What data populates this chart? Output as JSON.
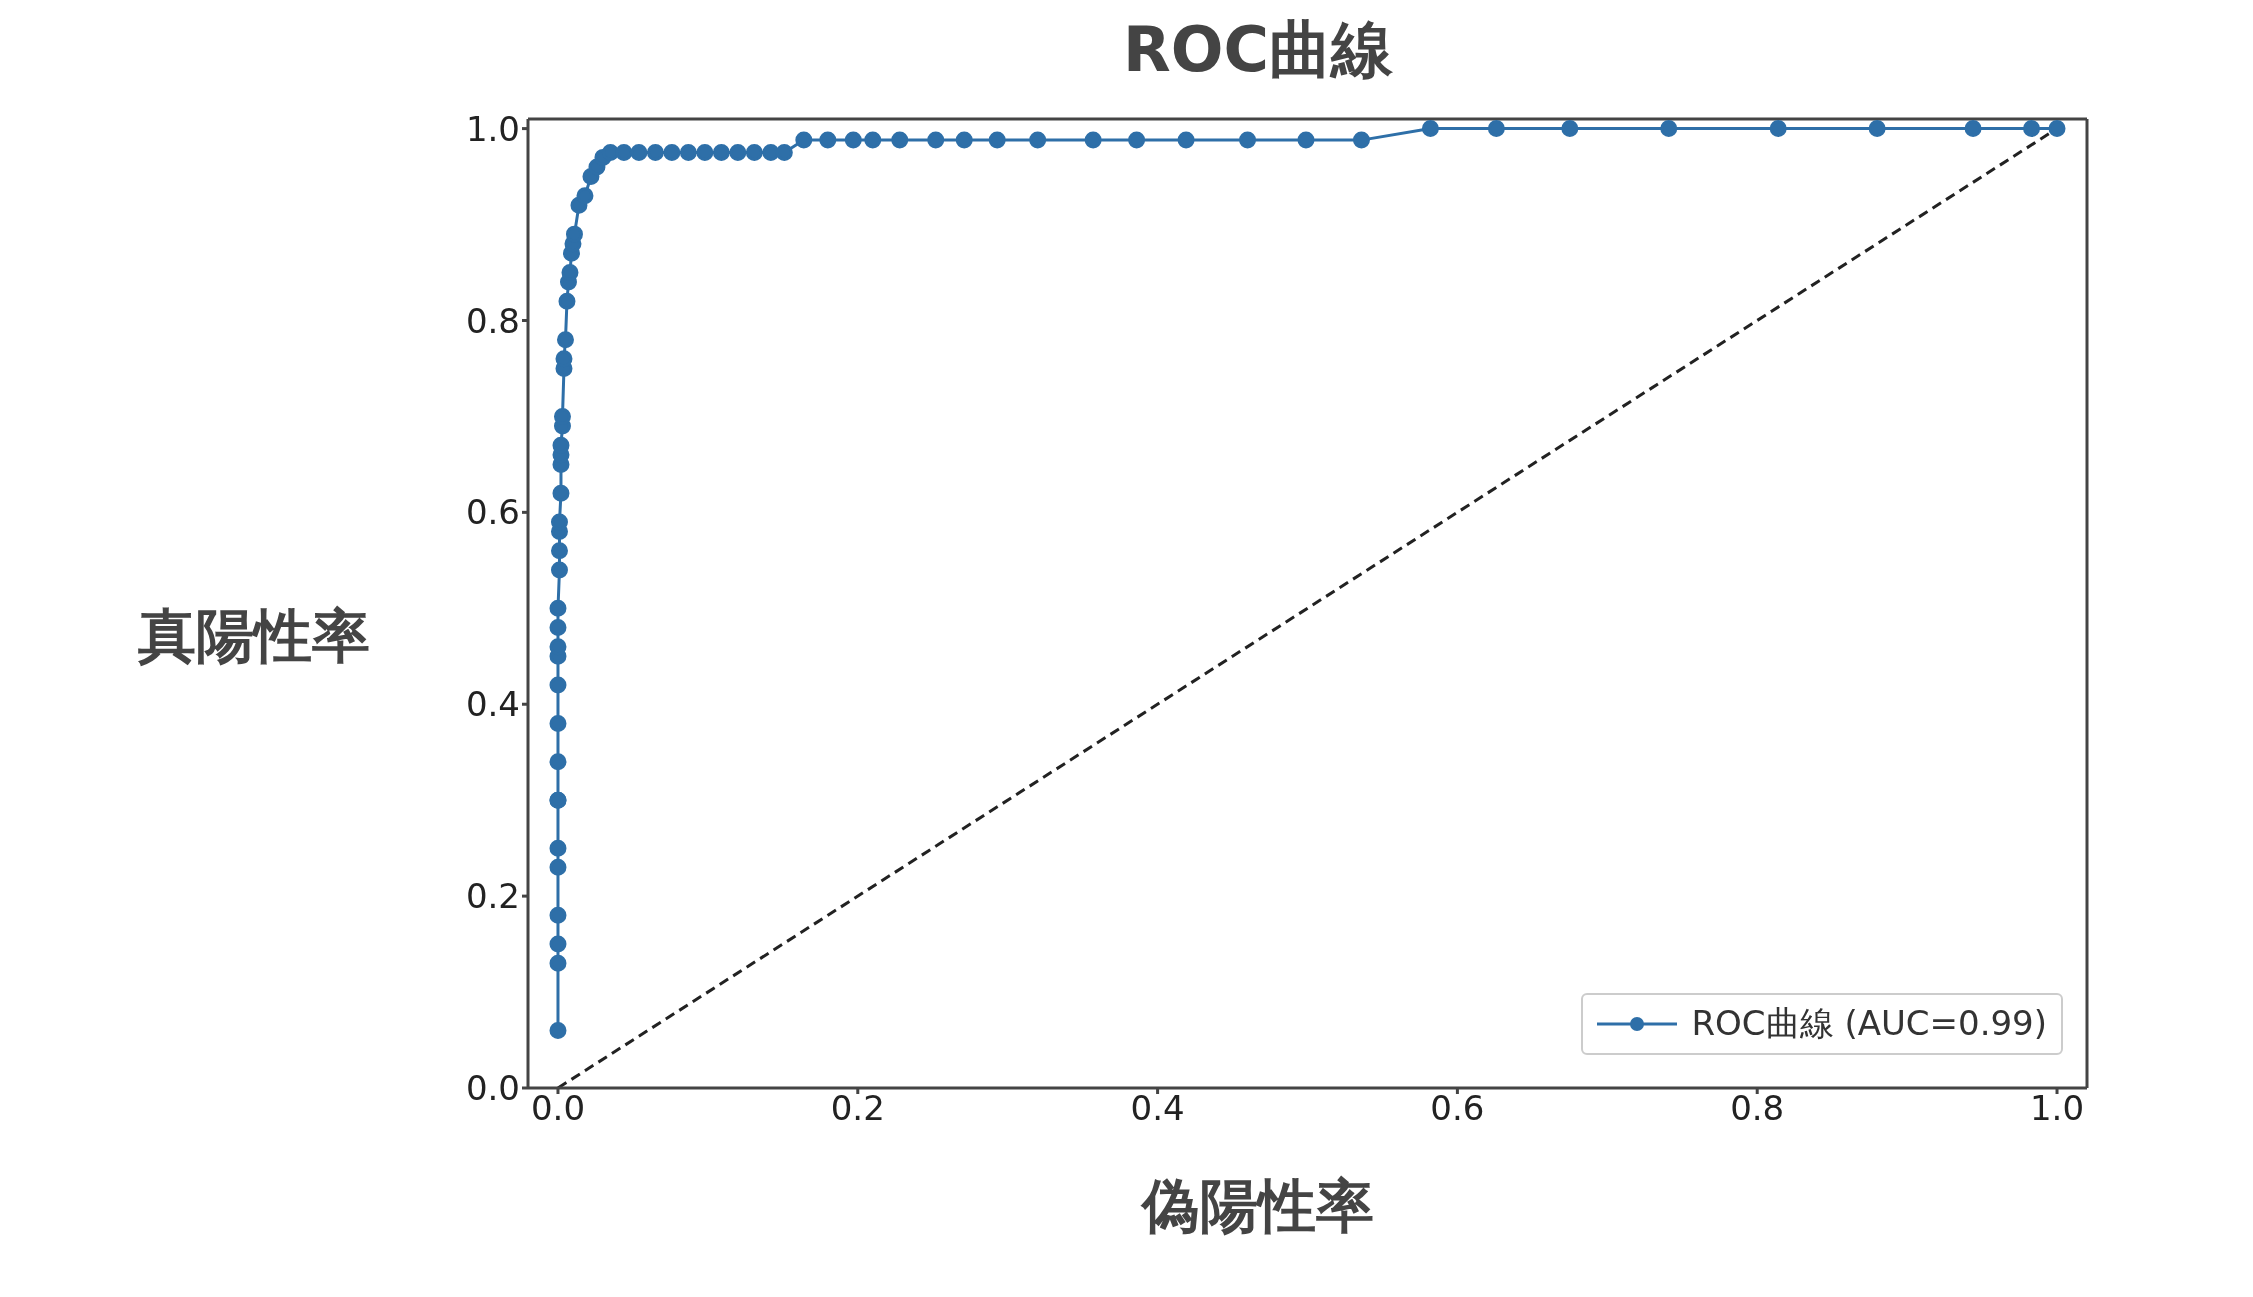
{
  "chart_data": {
    "type": "line",
    "title": "ROC曲線",
    "xlabel": "偽陽性率",
    "ylabel": "真陽性率",
    "xlim": [
      -0.02,
      1.02
    ],
    "ylim": [
      0,
      1.01
    ],
    "xticks": [
      {
        "value": 0,
        "label": "0.0"
      },
      {
        "value": 0.2,
        "label": "0.2"
      },
      {
        "value": 0.4,
        "label": "0.4"
      },
      {
        "value": 0.6,
        "label": "0.6"
      },
      {
        "value": 0.8,
        "label": "0.8"
      },
      {
        "value": 1,
        "label": "1.0"
      }
    ],
    "yticks": [
      {
        "value": 0,
        "label": "0.0"
      },
      {
        "value": 0.2,
        "label": "0.2"
      },
      {
        "value": 0.4,
        "label": "0.4"
      },
      {
        "value": 0.6,
        "label": "0.6"
      },
      {
        "value": 0.8,
        "label": "0.8"
      },
      {
        "value": 1,
        "label": "1.0"
      }
    ],
    "legend": "bottom right",
    "series": [
      {
        "name": "ROC曲線 (AUC=0.99)",
        "color": "#2e6fa8",
        "marker": "circle",
        "line_style": "solid",
        "x": [
          0,
          0,
          0,
          0,
          0,
          0,
          0,
          0,
          0,
          0,
          0,
          0,
          0,
          0,
          0,
          0.001,
          0.001,
          0.001,
          0.001,
          0.002,
          0.002,
          0.002,
          0.002,
          0.003,
          0.003,
          0.004,
          0.004,
          0.005,
          0.006,
          0.007,
          0.008,
          0.009,
          0.01,
          0.011,
          0.014,
          0.018,
          0.022,
          0.026,
          0.03,
          0.035,
          0.044,
          0.054,
          0.065,
          0.076,
          0.087,
          0.098,
          0.109,
          0.12,
          0.131,
          0.142,
          0.151,
          0.164,
          0.18,
          0.197,
          0.21,
          0.228,
          0.252,
          0.271,
          0.293,
          0.32,
          0.357,
          0.386,
          0.419,
          0.46,
          0.499,
          0.536,
          0.582,
          0.626,
          0.675,
          0.741,
          0.814,
          0.88,
          0.944,
          0.983,
          1
        ],
        "values": [
          0.06,
          0.13,
          0.15,
          0.18,
          0.23,
          0.25,
          0.3,
          0.3,
          0.34,
          0.38,
          0.42,
          0.45,
          0.46,
          0.48,
          0.5,
          0.54,
          0.56,
          0.58,
          0.59,
          0.62,
          0.65,
          0.66,
          0.67,
          0.69,
          0.7,
          0.75,
          0.76,
          0.78,
          0.82,
          0.84,
          0.85,
          0.87,
          0.88,
          0.89,
          0.92,
          0.93,
          0.95,
          0.96,
          0.97,
          0.975,
          0.975,
          0.975,
          0.975,
          0.975,
          0.975,
          0.975,
          0.975,
          0.975,
          0.975,
          0.975,
          0.975,
          0.988,
          0.988,
          0.988,
          0.988,
          0.988,
          0.988,
          0.988,
          0.988,
          0.988,
          0.988,
          0.988,
          0.988,
          0.988,
          0.988,
          0.988,
          1,
          1,
          1,
          1,
          1,
          1,
          1,
          1,
          1
        ]
      },
      {
        "color": "#222222",
        "marker": "none",
        "line_style": "dashed",
        "x": [
          0,
          1
        ],
        "values": [
          0,
          1
        ]
      }
    ]
  }
}
